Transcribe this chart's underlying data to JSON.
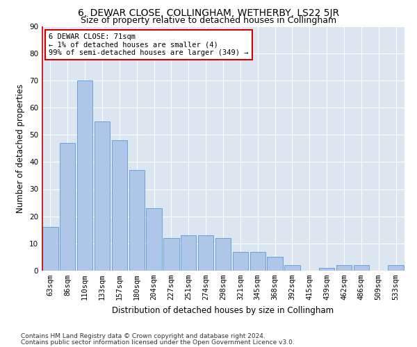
{
  "title": "6, DEWAR CLOSE, COLLINGHAM, WETHERBY, LS22 5JR",
  "subtitle": "Size of property relative to detached houses in Collingham",
  "xlabel": "Distribution of detached houses by size in Collingham",
  "ylabel": "Number of detached properties",
  "categories": [
    "63sqm",
    "86sqm",
    "110sqm",
    "133sqm",
    "157sqm",
    "180sqm",
    "204sqm",
    "227sqm",
    "251sqm",
    "274sqm",
    "298sqm",
    "321sqm",
    "345sqm",
    "368sqm",
    "392sqm",
    "415sqm",
    "439sqm",
    "462sqm",
    "486sqm",
    "509sqm",
    "533sqm"
  ],
  "values": [
    16,
    47,
    70,
    55,
    48,
    37,
    23,
    12,
    13,
    13,
    12,
    7,
    7,
    5,
    2,
    0,
    1,
    2,
    2,
    0,
    2
  ],
  "bar_color": "#aec6e8",
  "bar_edge_color": "#5b9bd5",
  "annotation_text": "6 DEWAR CLOSE: 71sqm\n← 1% of detached houses are smaller (4)\n99% of semi-detached houses are larger (349) →",
  "annotation_box_color": "#ffffff",
  "annotation_box_edge_color": "#cc0000",
  "ylim": [
    0,
    90
  ],
  "yticks": [
    0,
    10,
    20,
    30,
    40,
    50,
    60,
    70,
    80,
    90
  ],
  "plot_bg_color": "#dce6f1",
  "footer_line1": "Contains HM Land Registry data © Crown copyright and database right 2024.",
  "footer_line2": "Contains public sector information licensed under the Open Government Licence v3.0.",
  "title_fontsize": 10,
  "subtitle_fontsize": 9,
  "xlabel_fontsize": 8.5,
  "ylabel_fontsize": 8.5,
  "tick_fontsize": 7.5,
  "footer_fontsize": 6.5,
  "annotation_fontsize": 7.5
}
